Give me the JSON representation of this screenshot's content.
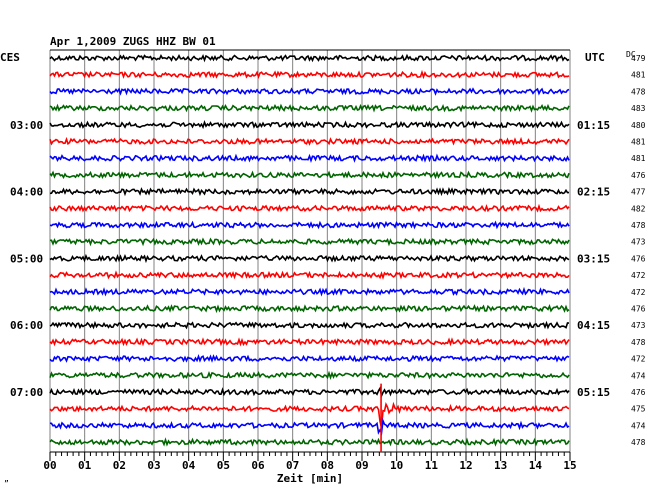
{
  "chart_data": {
    "type": "line",
    "title": "Apr 1,2009   ZUGS HHZ BW 01",
    "left_header": "CES",
    "right_header": "UTC",
    "dc_header": "DC",
    "xlabel": "Zeit [min]",
    "x_ticks": [
      "00",
      "01",
      "02",
      "03",
      "04",
      "05",
      "06",
      "07",
      "08",
      "09",
      "10",
      "11",
      "12",
      "13",
      "14",
      "15"
    ],
    "xlim": [
      0,
      15
    ],
    "left_time_labels": [
      "03:00",
      "04:00",
      "05:00",
      "06:00",
      "07:00"
    ],
    "right_time_labels": [
      "01:15",
      "02:15",
      "03:15",
      "04:15",
      "05:15"
    ],
    "time_label_rows": [
      4,
      8,
      12,
      16,
      20
    ],
    "trace_colors": [
      "#000000",
      "#ff0000",
      "#0000ff",
      "#006400"
    ],
    "dc_values": [
      "479",
      "481",
      "478",
      "483",
      "480",
      "481",
      "481",
      "476",
      "477",
      "482",
      "478",
      "473",
      "476",
      "472",
      "472",
      "476",
      "473",
      "478",
      "472",
      "474",
      "476",
      "475",
      "474",
      "478"
    ],
    "event": {
      "trace_index": 21,
      "minute": 9.55,
      "peak_row_span": 1.5
    },
    "grid": true,
    "bottom_note": "”"
  }
}
